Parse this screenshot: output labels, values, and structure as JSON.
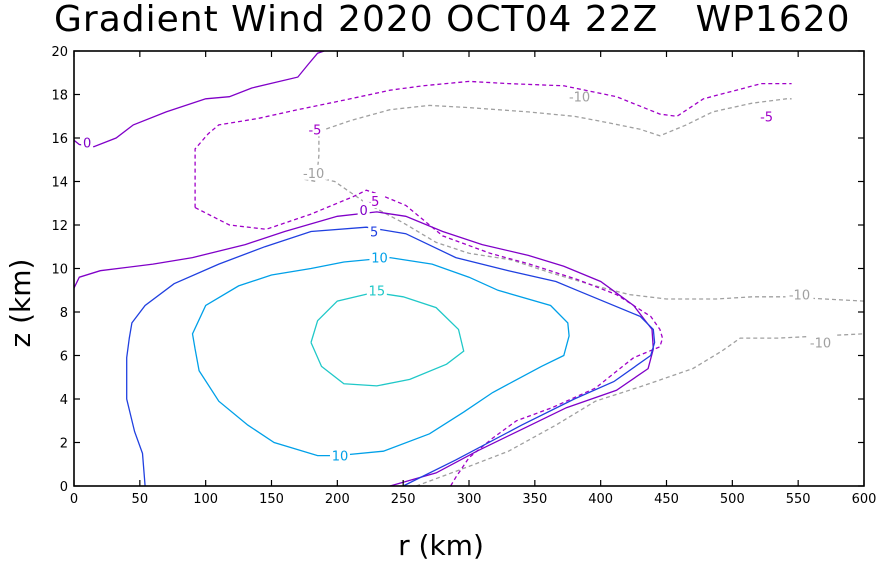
{
  "header": {
    "title": "Gradient Wind 2020 OCT04 22Z   WP1620"
  },
  "chart_data": {
    "type": "contour",
    "title": "Gradient Wind 2020 OCT04 22Z   WP1620",
    "xlabel": "r (km)",
    "ylabel": "z (km)",
    "xlim": [
      0,
      600
    ],
    "ylim": [
      0,
      20
    ],
    "x_ticks": [
      "0",
      "50",
      "100",
      "150",
      "200",
      "250",
      "300",
      "350",
      "400",
      "450",
      "500",
      "550",
      "600"
    ],
    "y_ticks": [
      "0",
      "2",
      "4",
      "6",
      "8",
      "10",
      "12",
      "14",
      "16",
      "18",
      "20"
    ],
    "grid": false,
    "contours": [
      {
        "level": -10,
        "color": "#a0a0a0",
        "dashed": true,
        "label_text": "-10",
        "lines": [
          [
            [
              175,
              14.1
            ],
            [
              184,
              14.2
            ],
            [
              198,
              14.0
            ],
            [
              222,
              13.0
            ],
            [
              250,
              12.1
            ],
            [
              275,
              11.2
            ],
            [
              300,
              10.7
            ],
            [
              332,
              10.4
            ],
            [
              362,
              9.8
            ],
            [
              396,
              9.2
            ],
            [
              422,
              8.8
            ],
            [
              450,
              8.6
            ],
            [
              488,
              8.6
            ],
            [
              515,
              8.7
            ],
            [
              540,
              8.7
            ],
            [
              570,
              8.6
            ],
            [
              600,
              8.5
            ]
          ],
          [
            [
              175,
              14.1
            ],
            [
              184,
              14.0
            ],
            [
              186,
              15.2
            ],
            [
              186,
              16.3
            ],
            [
              210,
              16.8
            ],
            [
              240,
              17.3
            ],
            [
              270,
              17.5
            ],
            [
              300,
              17.4
            ],
            [
              345,
              17.2
            ],
            [
              380,
              17.0
            ],
            [
              406,
              16.7
            ],
            [
              430,
              16.4
            ],
            [
              445,
              16.1
            ],
            [
              465,
              16.6
            ],
            [
              485,
              17.2
            ],
            [
              515,
              17.6
            ],
            [
              541,
              17.8
            ],
            [
              545,
              17.8
            ]
          ],
          [
            [
              260,
              0
            ],
            [
              300,
              0.9
            ],
            [
              330,
              1.6
            ],
            [
              366,
              2.8
            ],
            [
              396,
              3.9
            ],
            [
              432,
              4.6
            ],
            [
              470,
              5.4
            ],
            [
              492,
              6.2
            ],
            [
              506,
              6.8
            ],
            [
              535,
              6.8
            ],
            [
              568,
              6.9
            ],
            [
              600,
              7.0
            ]
          ]
        ],
        "labels": [
          [
            182,
            14.4
          ],
          [
            384,
            17.9
          ],
          [
            551,
            8.8
          ],
          [
            567,
            6.6
          ]
        ]
      },
      {
        "level": -5,
        "color": "#a000c8",
        "dashed": true,
        "label_text": "-5",
        "lines": [
          [
            [
              92,
              12.8
            ],
            [
              118,
              12.0
            ],
            [
              146,
              11.8
            ],
            [
              180,
              12.5
            ],
            [
              212,
              13.3
            ],
            [
              222,
              13.6
            ],
            [
              232,
              13.4
            ],
            [
              252,
              12.9
            ],
            [
              280,
              11.5
            ],
            [
              316,
              10.7
            ],
            [
              346,
              10.2
            ],
            [
              382,
              9.5
            ],
            [
              412,
              8.8
            ],
            [
              438,
              7.8
            ],
            [
              445,
              7.2
            ],
            [
              447,
              6.8
            ],
            [
              445,
              6.4
            ],
            [
              425,
              5.9
            ],
            [
              396,
              4.5
            ],
            [
              363,
              3.6
            ],
            [
              336,
              3.0
            ],
            [
              318,
              2.2
            ],
            [
              300,
              1.3
            ],
            [
              290,
              0.4
            ],
            [
              286,
              0
            ]
          ],
          [
            [
              92,
              12.8
            ],
            [
              92,
              14.6
            ],
            [
              92,
              15.5
            ],
            [
              102,
              16.2
            ],
            [
              110,
              16.6
            ],
            [
              140,
              16.9
            ],
            [
              170,
              17.3
            ],
            [
              210,
              17.8
            ],
            [
              240,
              18.2
            ],
            [
              265,
              18.4
            ],
            [
              300,
              18.6
            ],
            [
              330,
              18.5
            ],
            [
              372,
              18.4
            ],
            [
              412,
              17.9
            ],
            [
              445,
              17.1
            ],
            [
              458,
              17.0
            ],
            [
              478,
              17.8
            ],
            [
              503,
              18.2
            ],
            [
              522,
              18.5
            ],
            [
              545,
              18.5
            ]
          ]
        ],
        "labels": [
          [
            183,
            16.4
          ],
          [
            227,
            13.1
          ],
          [
            526,
            17.0
          ]
        ]
      },
      {
        "level": 0,
        "color": "#8000c8",
        "dashed": false,
        "label_text": "0",
        "lines": [
          [
            [
              0,
              15.9
            ],
            [
              4,
              15.7
            ],
            [
              15,
              15.6
            ],
            [
              32,
              16.0
            ],
            [
              45,
              16.6
            ],
            [
              70,
              17.2
            ],
            [
              100,
              17.8
            ],
            [
              118,
              17.9
            ],
            [
              135,
              18.3
            ],
            [
              170,
              18.8
            ],
            [
              178,
              19.4
            ],
            [
              185,
              19.9
            ],
            [
              190,
              20.0
            ]
          ],
          [
            [
              0,
              9.1
            ],
            [
              4,
              9.6
            ],
            [
              20,
              9.9
            ],
            [
              60,
              10.2
            ],
            [
              90,
              10.5
            ],
            [
              110,
              10.8
            ],
            [
              130,
              11.1
            ],
            [
              160,
              11.7
            ],
            [
              200,
              12.4
            ],
            [
              230,
              12.6
            ],
            [
              252,
              12.4
            ],
            [
              280,
              11.7
            ],
            [
              310,
              11.1
            ],
            [
              345,
              10.6
            ],
            [
              372,
              10.1
            ],
            [
              400,
              9.4
            ],
            [
              425,
              8.3
            ],
            [
              439,
              7.2
            ],
            [
              440,
              6.3
            ],
            [
              436,
              5.4
            ],
            [
              412,
              4.4
            ],
            [
              374,
              3.6
            ],
            [
              340,
              2.6
            ],
            [
              306,
              1.6
            ],
            [
              275,
              0.6
            ],
            [
              240,
              0
            ]
          ]
        ],
        "labels": [
          [
            10,
            15.8
          ],
          [
            220,
            12.7
          ]
        ]
      },
      {
        "level": 5,
        "color": "#2040e0",
        "dashed": false,
        "label_text": "5",
        "lines": [
          [
            [
              54,
              0
            ],
            [
              52,
              1.5
            ],
            [
              46,
              2.5
            ],
            [
              40,
              4.0
            ],
            [
              40,
              5.9
            ],
            [
              42,
              6.8
            ],
            [
              44,
              7.5
            ],
            [
              54,
              8.3
            ],
            [
              76,
              9.3
            ],
            [
              110,
              10.2
            ],
            [
              145,
              11.0
            ],
            [
              180,
              11.7
            ],
            [
              222,
              11.9
            ],
            [
              252,
              11.6
            ],
            [
              290,
              10.5
            ],
            [
              330,
              9.9
            ],
            [
              366,
              9.4
            ],
            [
              382,
              9.0
            ],
            [
              430,
              7.8
            ],
            [
              440,
              7.2
            ],
            [
              441,
              6.6
            ],
            [
              438,
              6.0
            ],
            [
              410,
              4.8
            ],
            [
              380,
              4.0
            ],
            [
              340,
              2.8
            ],
            [
              290,
              1.2
            ],
            [
              250,
              0
            ]
          ]
        ],
        "labels": [
          [
            228,
            11.7
          ]
        ]
      },
      {
        "level": 10,
        "color": "#00a0e8",
        "dashed": false,
        "label_text": "10",
        "lines": [
          [
            [
              92,
              6.3
            ],
            [
              90,
              7.0
            ],
            [
              100,
              8.3
            ],
            [
              125,
              9.2
            ],
            [
              150,
              9.7
            ],
            [
              180,
              10.0
            ],
            [
              205,
              10.3
            ],
            [
              240,
              10.5
            ],
            [
              272,
              10.2
            ],
            [
              300,
              9.6
            ],
            [
              322,
              9.0
            ],
            [
              362,
              8.3
            ],
            [
              375,
              7.5
            ],
            [
              376,
              6.9
            ],
            [
              372,
              6.0
            ],
            [
              355,
              5.5
            ],
            [
              318,
              4.3
            ],
            [
              296,
              3.4
            ],
            [
              270,
              2.4
            ],
            [
              235,
              1.6
            ],
            [
              200,
              1.4
            ],
            [
              185,
              1.4
            ],
            [
              152,
              2.0
            ],
            [
              132,
              2.8
            ],
            [
              110,
              3.9
            ],
            [
              95,
              5.3
            ],
            [
              92,
              6.3
            ]
          ]
        ],
        "labels": [
          [
            202,
            1.4
          ],
          [
            232,
            10.5
          ]
        ]
      },
      {
        "level": 15,
        "color": "#20c8c8",
        "dashed": false,
        "label_text": "15",
        "lines": [
          [
            [
              180,
              6.6
            ],
            [
              185,
              7.6
            ],
            [
              200,
              8.5
            ],
            [
              228,
              8.9
            ],
            [
              250,
              8.7
            ],
            [
              275,
              8.2
            ],
            [
              292,
              7.2
            ],
            [
              296,
              6.2
            ],
            [
              283,
              5.6
            ],
            [
              255,
              4.9
            ],
            [
              230,
              4.6
            ],
            [
              205,
              4.7
            ],
            [
              188,
              5.5
            ],
            [
              180,
              6.6
            ]
          ]
        ],
        "labels": [
          [
            230,
            9.0
          ]
        ]
      }
    ]
  }
}
